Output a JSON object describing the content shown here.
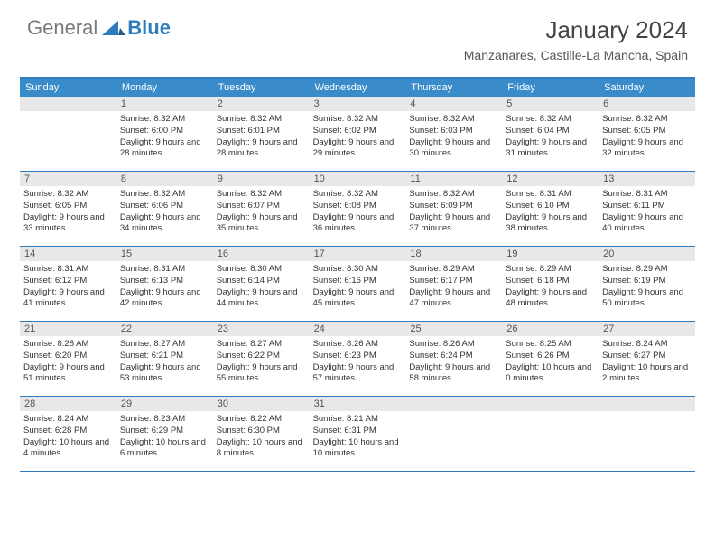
{
  "brand": {
    "part1": "General",
    "part2": "Blue"
  },
  "title": "January 2024",
  "location": "Manzanares, Castille-La Mancha, Spain",
  "header_bg": "#3a8bc9",
  "rule_color": "#2f7bbf",
  "daynum_bg": "#e8e8e8",
  "weekdays": [
    "Sunday",
    "Monday",
    "Tuesday",
    "Wednesday",
    "Thursday",
    "Friday",
    "Saturday"
  ],
  "weeks": [
    [
      {
        "n": "",
        "sr": "",
        "ss": "",
        "dl": ""
      },
      {
        "n": "1",
        "sr": "Sunrise: 8:32 AM",
        "ss": "Sunset: 6:00 PM",
        "dl": "Daylight: 9 hours and 28 minutes."
      },
      {
        "n": "2",
        "sr": "Sunrise: 8:32 AM",
        "ss": "Sunset: 6:01 PM",
        "dl": "Daylight: 9 hours and 28 minutes."
      },
      {
        "n": "3",
        "sr": "Sunrise: 8:32 AM",
        "ss": "Sunset: 6:02 PM",
        "dl": "Daylight: 9 hours and 29 minutes."
      },
      {
        "n": "4",
        "sr": "Sunrise: 8:32 AM",
        "ss": "Sunset: 6:03 PM",
        "dl": "Daylight: 9 hours and 30 minutes."
      },
      {
        "n": "5",
        "sr": "Sunrise: 8:32 AM",
        "ss": "Sunset: 6:04 PM",
        "dl": "Daylight: 9 hours and 31 minutes."
      },
      {
        "n": "6",
        "sr": "Sunrise: 8:32 AM",
        "ss": "Sunset: 6:05 PM",
        "dl": "Daylight: 9 hours and 32 minutes."
      }
    ],
    [
      {
        "n": "7",
        "sr": "Sunrise: 8:32 AM",
        "ss": "Sunset: 6:05 PM",
        "dl": "Daylight: 9 hours and 33 minutes."
      },
      {
        "n": "8",
        "sr": "Sunrise: 8:32 AM",
        "ss": "Sunset: 6:06 PM",
        "dl": "Daylight: 9 hours and 34 minutes."
      },
      {
        "n": "9",
        "sr": "Sunrise: 8:32 AM",
        "ss": "Sunset: 6:07 PM",
        "dl": "Daylight: 9 hours and 35 minutes."
      },
      {
        "n": "10",
        "sr": "Sunrise: 8:32 AM",
        "ss": "Sunset: 6:08 PM",
        "dl": "Daylight: 9 hours and 36 minutes."
      },
      {
        "n": "11",
        "sr": "Sunrise: 8:32 AM",
        "ss": "Sunset: 6:09 PM",
        "dl": "Daylight: 9 hours and 37 minutes."
      },
      {
        "n": "12",
        "sr": "Sunrise: 8:31 AM",
        "ss": "Sunset: 6:10 PM",
        "dl": "Daylight: 9 hours and 38 minutes."
      },
      {
        "n": "13",
        "sr": "Sunrise: 8:31 AM",
        "ss": "Sunset: 6:11 PM",
        "dl": "Daylight: 9 hours and 40 minutes."
      }
    ],
    [
      {
        "n": "14",
        "sr": "Sunrise: 8:31 AM",
        "ss": "Sunset: 6:12 PM",
        "dl": "Daylight: 9 hours and 41 minutes."
      },
      {
        "n": "15",
        "sr": "Sunrise: 8:31 AM",
        "ss": "Sunset: 6:13 PM",
        "dl": "Daylight: 9 hours and 42 minutes."
      },
      {
        "n": "16",
        "sr": "Sunrise: 8:30 AM",
        "ss": "Sunset: 6:14 PM",
        "dl": "Daylight: 9 hours and 44 minutes."
      },
      {
        "n": "17",
        "sr": "Sunrise: 8:30 AM",
        "ss": "Sunset: 6:16 PM",
        "dl": "Daylight: 9 hours and 45 minutes."
      },
      {
        "n": "18",
        "sr": "Sunrise: 8:29 AM",
        "ss": "Sunset: 6:17 PM",
        "dl": "Daylight: 9 hours and 47 minutes."
      },
      {
        "n": "19",
        "sr": "Sunrise: 8:29 AM",
        "ss": "Sunset: 6:18 PM",
        "dl": "Daylight: 9 hours and 48 minutes."
      },
      {
        "n": "20",
        "sr": "Sunrise: 8:29 AM",
        "ss": "Sunset: 6:19 PM",
        "dl": "Daylight: 9 hours and 50 minutes."
      }
    ],
    [
      {
        "n": "21",
        "sr": "Sunrise: 8:28 AM",
        "ss": "Sunset: 6:20 PM",
        "dl": "Daylight: 9 hours and 51 minutes."
      },
      {
        "n": "22",
        "sr": "Sunrise: 8:27 AM",
        "ss": "Sunset: 6:21 PM",
        "dl": "Daylight: 9 hours and 53 minutes."
      },
      {
        "n": "23",
        "sr": "Sunrise: 8:27 AM",
        "ss": "Sunset: 6:22 PM",
        "dl": "Daylight: 9 hours and 55 minutes."
      },
      {
        "n": "24",
        "sr": "Sunrise: 8:26 AM",
        "ss": "Sunset: 6:23 PM",
        "dl": "Daylight: 9 hours and 57 minutes."
      },
      {
        "n": "25",
        "sr": "Sunrise: 8:26 AM",
        "ss": "Sunset: 6:24 PM",
        "dl": "Daylight: 9 hours and 58 minutes."
      },
      {
        "n": "26",
        "sr": "Sunrise: 8:25 AM",
        "ss": "Sunset: 6:26 PM",
        "dl": "Daylight: 10 hours and 0 minutes."
      },
      {
        "n": "27",
        "sr": "Sunrise: 8:24 AM",
        "ss": "Sunset: 6:27 PM",
        "dl": "Daylight: 10 hours and 2 minutes."
      }
    ],
    [
      {
        "n": "28",
        "sr": "Sunrise: 8:24 AM",
        "ss": "Sunset: 6:28 PM",
        "dl": "Daylight: 10 hours and 4 minutes."
      },
      {
        "n": "29",
        "sr": "Sunrise: 8:23 AM",
        "ss": "Sunset: 6:29 PM",
        "dl": "Daylight: 10 hours and 6 minutes."
      },
      {
        "n": "30",
        "sr": "Sunrise: 8:22 AM",
        "ss": "Sunset: 6:30 PM",
        "dl": "Daylight: 10 hours and 8 minutes."
      },
      {
        "n": "31",
        "sr": "Sunrise: 8:21 AM",
        "ss": "Sunset: 6:31 PM",
        "dl": "Daylight: 10 hours and 10 minutes."
      },
      {
        "n": "",
        "sr": "",
        "ss": "",
        "dl": ""
      },
      {
        "n": "",
        "sr": "",
        "ss": "",
        "dl": ""
      },
      {
        "n": "",
        "sr": "",
        "ss": "",
        "dl": ""
      }
    ]
  ]
}
